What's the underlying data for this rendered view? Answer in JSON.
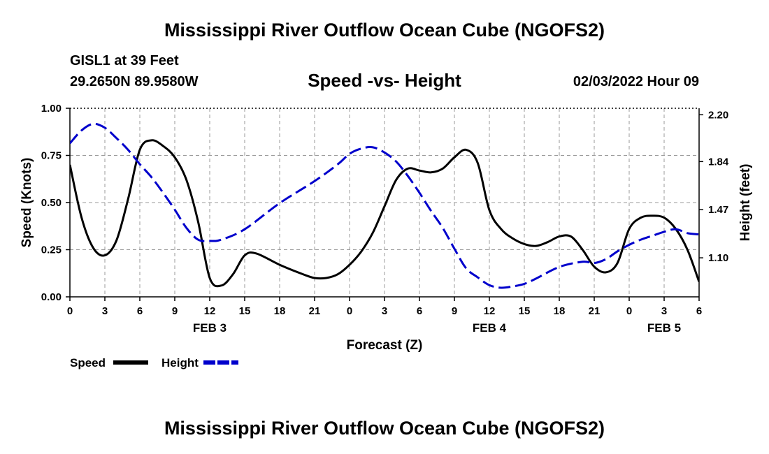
{
  "header": {
    "title": "Mississippi River Outflow Ocean Cube (NGOFS2)",
    "station": "GISL1 at 39 Feet",
    "coords": "29.2650N  89.9580W",
    "subtitle": "Speed -vs- Height",
    "date": "02/03/2022 Hour 09"
  },
  "footer": {
    "title": "Mississippi River Outflow Ocean Cube (NGOFS2)"
  },
  "legend": {
    "speed_label": "Speed",
    "height_label": "Height"
  },
  "colors": {
    "speed": "#000000",
    "height": "#0000cc",
    "grid": "#999999"
  },
  "chart_data": {
    "type": "line",
    "title": "Speed -vs- Height",
    "xlabel": "Forecast (Z)",
    "ylabel": "Speed (Knots)",
    "y2label": "Height (feet)",
    "xlim": [
      0,
      54
    ],
    "ylim": [
      0,
      1.0
    ],
    "y2lim": [
      0.8,
      2.25
    ],
    "x_ticks": [
      0,
      3,
      6,
      9,
      12,
      15,
      18,
      21,
      24,
      27,
      30,
      33,
      36,
      39,
      42,
      45,
      48,
      51,
      54
    ],
    "x_tick_labels": [
      "0",
      "3",
      "6",
      "9",
      "12",
      "15",
      "18",
      "21",
      "0",
      "3",
      "6",
      "9",
      "12",
      "15",
      "18",
      "21",
      "0",
      "3",
      "6"
    ],
    "y_ticks": [
      0,
      0.25,
      0.5,
      0.75,
      1.0
    ],
    "y_tick_labels": [
      "0.00",
      "0.25",
      "0.50",
      "0.75",
      "1.00"
    ],
    "y2_ticks": [
      1.1,
      1.47,
      1.84,
      2.2
    ],
    "y2_tick_labels": [
      "1.10",
      "1.47",
      "1.84",
      "2.20"
    ],
    "day_labels": [
      {
        "x": 12,
        "label": "FEB 3"
      },
      {
        "x": 36,
        "label": "FEB 4"
      },
      {
        "x": 51,
        "label": "FEB 5"
      }
    ],
    "series": [
      {
        "name": "Speed",
        "axis": "left",
        "style": "solid",
        "x": [
          0,
          1,
          2,
          3,
          4,
          5,
          6,
          7,
          8,
          9,
          10,
          11,
          12,
          13,
          14,
          15,
          16,
          18,
          20,
          21,
          22,
          23,
          24,
          25,
          26,
          27,
          28,
          29,
          30,
          31,
          32,
          33,
          34,
          35,
          36,
          37,
          38,
          39,
          40,
          41,
          42,
          43,
          44,
          45,
          46,
          47,
          48,
          49,
          50,
          51,
          52,
          53,
          54
        ],
        "values": [
          0.7,
          0.42,
          0.26,
          0.22,
          0.3,
          0.52,
          0.78,
          0.83,
          0.8,
          0.74,
          0.62,
          0.4,
          0.1,
          0.06,
          0.12,
          0.22,
          0.23,
          0.17,
          0.12,
          0.1,
          0.1,
          0.12,
          0.17,
          0.24,
          0.34,
          0.48,
          0.62,
          0.68,
          0.67,
          0.66,
          0.68,
          0.74,
          0.78,
          0.71,
          0.46,
          0.36,
          0.31,
          0.28,
          0.27,
          0.29,
          0.32,
          0.32,
          0.25,
          0.16,
          0.13,
          0.18,
          0.36,
          0.42,
          0.43,
          0.42,
          0.36,
          0.25,
          0.08
        ]
      },
      {
        "name": "Height",
        "axis": "right",
        "style": "dashed",
        "x": [
          0,
          1,
          2,
          3,
          4,
          5,
          6,
          7,
          8,
          9,
          10,
          11,
          12,
          13,
          15,
          18,
          21,
          23,
          24,
          25,
          26,
          27,
          28,
          29,
          30,
          31,
          32,
          33,
          34,
          35,
          36,
          37,
          38,
          39,
          40,
          42,
          44,
          45,
          46,
          47,
          48,
          49,
          50,
          51,
          52,
          53,
          54
        ],
        "values": [
          1.98,
          2.08,
          2.13,
          2.1,
          2.02,
          1.93,
          1.82,
          1.72,
          1.6,
          1.47,
          1.33,
          1.24,
          1.23,
          1.24,
          1.32,
          1.52,
          1.69,
          1.82,
          1.9,
          1.94,
          1.95,
          1.91,
          1.84,
          1.73,
          1.6,
          1.46,
          1.33,
          1.17,
          1.02,
          0.95,
          0.89,
          0.87,
          0.88,
          0.9,
          0.94,
          1.03,
          1.07,
          1.06,
          1.09,
          1.15,
          1.2,
          1.24,
          1.27,
          1.3,
          1.32,
          1.29,
          1.28
        ]
      }
    ]
  }
}
